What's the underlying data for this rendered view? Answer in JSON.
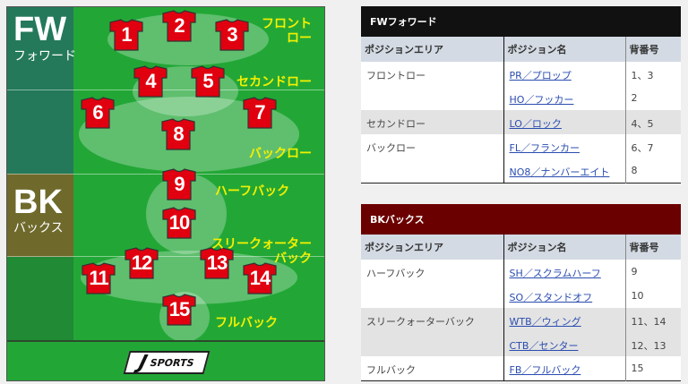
{
  "field": {
    "fw": {
      "title": "FW",
      "subtitle": "フォワード"
    },
    "bk": {
      "title": "BK",
      "subtitle": "バックス"
    },
    "jerseys": [
      "1",
      "2",
      "3",
      "4",
      "5",
      "6",
      "7",
      "8",
      "9",
      "10",
      "11",
      "12",
      "13",
      "14",
      "15"
    ],
    "labels": {
      "front_row_1": "フロント",
      "front_row_2": "ロー",
      "second_row": "セカンドロー",
      "back_row": "バックロー",
      "half_back": "ハーフバック",
      "three_quarter_1": "スリークォーター",
      "three_quarter_2": "バック",
      "full_back": "フルバック"
    },
    "logo": {
      "mark": "J",
      "text": "SPORTS"
    },
    "colors": {
      "field": "#22a736",
      "jersey": "#e0000f",
      "label": "#f4f000"
    }
  },
  "fw_table": {
    "title": "FWフォワード",
    "header_color": "#111111",
    "columns": [
      "ポジションエリア",
      "ポジション名",
      "背番号"
    ],
    "rows": [
      {
        "area": "フロントロー",
        "position": "PR／プロップ",
        "numbers": "1、3"
      },
      {
        "area": "",
        "position": "HO／フッカー",
        "numbers": "2"
      },
      {
        "area": "セカンドロー",
        "position": "LO／ロック",
        "numbers": "4、5"
      },
      {
        "area": "バックロー",
        "position": "FL／フランカー",
        "numbers": "6、7"
      },
      {
        "area": "",
        "position": "NO8／ナンバーエイト",
        "numbers": "8"
      }
    ]
  },
  "bk_table": {
    "title": "BKバックス",
    "header_color": "#6b0000",
    "columns": [
      "ポジションエリア",
      "ポジション名",
      "背番号"
    ],
    "rows": [
      {
        "area": "ハーフバック",
        "position": "SH／スクラムハーフ",
        "numbers": "9"
      },
      {
        "area": "",
        "position": "SO／スタンドオフ",
        "numbers": "10"
      },
      {
        "area": "スリークォーターバック",
        "position": "WTB／ウィング",
        "numbers": "11、14"
      },
      {
        "area": "",
        "position": "CTB／センター",
        "numbers": "12、13"
      },
      {
        "area": "フルバック",
        "position": "FB／フルバック",
        "numbers": "15"
      }
    ]
  }
}
